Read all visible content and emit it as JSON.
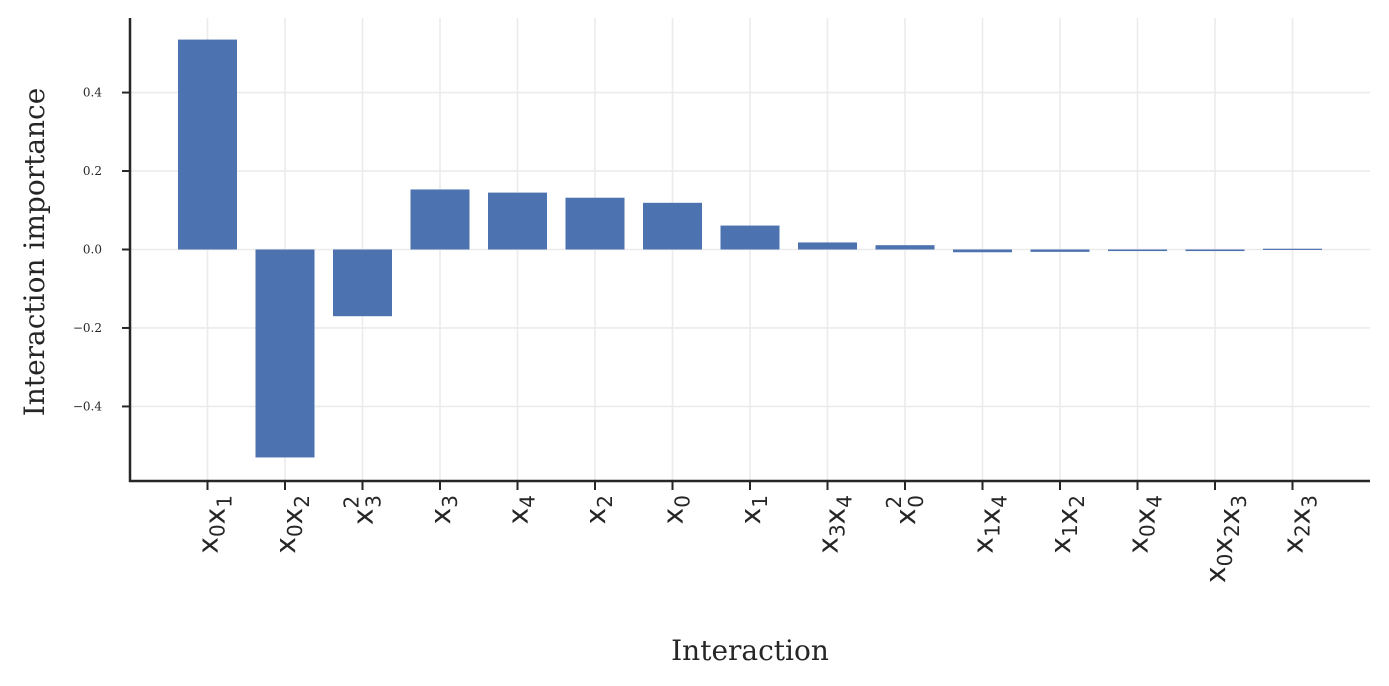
{
  "chart_data": {
    "type": "bar",
    "title": "",
    "xlabel": "Interaction",
    "ylabel": "Interaction importance",
    "categories": [
      [
        [
          "x",
          "0"
        ],
        [
          "x",
          "1"
        ]
      ],
      [
        [
          "x",
          "0"
        ],
        [
          "x",
          "2"
        ]
      ],
      [
        [
          "x",
          "3",
          "2"
        ]
      ],
      [
        [
          "x",
          "3"
        ]
      ],
      [
        [
          "x",
          "4"
        ]
      ],
      [
        [
          "x",
          "2"
        ]
      ],
      [
        [
          "x",
          "0"
        ]
      ],
      [
        [
          "x",
          "1"
        ]
      ],
      [
        [
          "x",
          "3"
        ],
        [
          "x",
          "4"
        ]
      ],
      [
        [
          "x",
          "0",
          "2"
        ]
      ],
      [
        [
          "x",
          "1"
        ],
        [
          "x",
          "4"
        ]
      ],
      [
        [
          "x",
          "1"
        ],
        [
          "x",
          "2"
        ]
      ],
      [
        [
          "x",
          "0"
        ],
        [
          "x",
          "4"
        ]
      ],
      [
        [
          "x",
          "0"
        ],
        [
          "x",
          "2"
        ],
        [
          "x",
          "3"
        ]
      ],
      [
        [
          "x",
          "2"
        ],
        [
          "x",
          "3"
        ]
      ]
    ],
    "values": [
      0.535,
      -0.53,
      -0.17,
      0.153,
      0.145,
      0.132,
      0.119,
      0.061,
      0.018,
      0.011,
      -0.007,
      -0.006,
      -0.004,
      -0.004,
      0.002
    ],
    "ylim": [
      -0.59,
      0.59
    ],
    "yticks": [
      -0.4,
      -0.2,
      0.0,
      0.2,
      0.4
    ],
    "ytick_labels": [
      "−0.4",
      "−0.2",
      "0.0",
      "0.2",
      "0.4"
    ],
    "grid": true,
    "colors": {
      "bar": "#4c72b0",
      "grid": "#ebebeb",
      "axis": "#262626"
    }
  }
}
